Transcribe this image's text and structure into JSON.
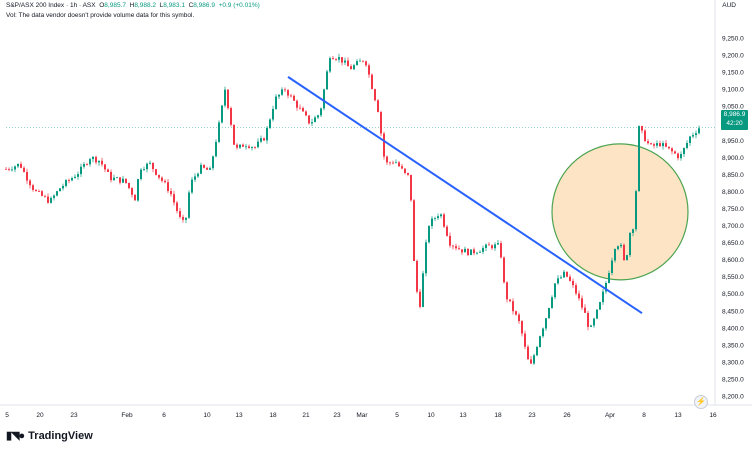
{
  "header": {
    "symbol": "S&P/ASX 200 Index · 1h · ASX",
    "open_label": "O",
    "open": "8,985.7",
    "high_label": "H",
    "high": "8,988.2",
    "low_label": "L",
    "low": "8,983.1",
    "close_label": "C",
    "close": "8,986.9",
    "change": "+0.9 (+0.01%)",
    "volume_note": "Vol: The data vendor doesn't provide volume data for this symbol."
  },
  "currency": "AUD",
  "price_label": {
    "value": "8,986.9",
    "countdown": "42:20"
  },
  "logo_text": "TradingView",
  "colors": {
    "up": "#089981",
    "down": "#f23645",
    "trendline": "#2962ff",
    "circle_fill": "#fde3c2",
    "circle_stroke": "#43a047"
  },
  "chart_data": {
    "type": "candlestick",
    "y_ticks": [
      9250,
      9200,
      9150,
      9100,
      9050,
      9000,
      8950,
      8900,
      8850,
      8800,
      8750,
      8700,
      8650,
      8600,
      8550,
      8500,
      8450,
      8400,
      8350,
      8300,
      8250,
      8200
    ],
    "y_tick_labels": [
      "9,250.0",
      "9,200.0",
      "9,150.0",
      "9,100.0",
      "9,050.0",
      "9,000.0",
      "8,950.0",
      "8,900.0",
      "8,850.0",
      "8,800.0",
      "8,750.0",
      "8,700.0",
      "8,650.0",
      "8,600.0",
      "8,550.0",
      "8,500.0",
      "8,450.0",
      "8,400.0",
      "8,350.0",
      "8,300.0",
      "8,250.0",
      "8,200.0"
    ],
    "ylim": [
      8170,
      9290
    ],
    "x_tick_labels": [
      "5",
      "20",
      "23",
      "Feb",
      "6",
      "10",
      "13",
      "18",
      "21",
      "23",
      "Mar",
      "5",
      "10",
      "13",
      "18",
      "23",
      "26",
      "Apr",
      "8",
      "13",
      "16"
    ],
    "x_tick_index": [
      0,
      33,
      67,
      120,
      157,
      200,
      232,
      266,
      299,
      330,
      355,
      390,
      424,
      456,
      491,
      525,
      560,
      603,
      637,
      671,
      706
    ],
    "xlim": [
      0,
      752
    ],
    "path": [
      [
        0,
        8860
      ],
      [
        20,
        8880
      ],
      [
        25,
        8850
      ],
      [
        35,
        8800
      ],
      [
        50,
        8770
      ],
      [
        60,
        8810
      ],
      [
        80,
        8860
      ],
      [
        90,
        8900
      ],
      [
        100,
        8890
      ],
      [
        110,
        8840
      ],
      [
        125,
        8830
      ],
      [
        135,
        8780
      ],
      [
        140,
        8870
      ],
      [
        150,
        8880
      ],
      [
        160,
        8840
      ],
      [
        170,
        8800
      ],
      [
        180,
        8720
      ],
      [
        185,
        8700
      ],
      [
        190,
        8820
      ],
      [
        200,
        8870
      ],
      [
        210,
        8860
      ],
      [
        220,
        9010
      ],
      [
        225,
        9100
      ],
      [
        230,
        9020
      ],
      [
        235,
        8920
      ],
      [
        245,
        8940
      ],
      [
        255,
        8930
      ],
      [
        265,
        8960
      ],
      [
        275,
        9070
      ],
      [
        285,
        9100
      ],
      [
        300,
        9040
      ],
      [
        310,
        9000
      ],
      [
        320,
        9030
      ],
      [
        330,
        9200
      ],
      [
        340,
        9190
      ],
      [
        350,
        9160
      ],
      [
        360,
        9180
      ],
      [
        365,
        9190
      ],
      [
        370,
        9130
      ],
      [
        378,
        9040
      ],
      [
        385,
        8880
      ],
      [
        395,
        8890
      ],
      [
        405,
        8850
      ],
      [
        410,
        8840
      ],
      [
        415,
        8530
      ],
      [
        420,
        8470
      ],
      [
        428,
        8700
      ],
      [
        440,
        8740
      ],
      [
        450,
        8650
      ],
      [
        460,
        8630
      ],
      [
        470,
        8620
      ],
      [
        480,
        8630
      ],
      [
        490,
        8640
      ],
      [
        500,
        8640
      ],
      [
        505,
        8500
      ],
      [
        520,
        8410
      ],
      [
        525,
        8340
      ],
      [
        530,
        8280
      ],
      [
        540,
        8380
      ],
      [
        545,
        8420
      ],
      [
        555,
        8530
      ],
      [
        565,
        8560
      ],
      [
        575,
        8510
      ],
      [
        585,
        8440
      ],
      [
        590,
        8390
      ],
      [
        600,
        8470
      ],
      [
        605,
        8520
      ],
      [
        615,
        8640
      ],
      [
        620,
        8650
      ],
      [
        625,
        8580
      ],
      [
        630,
        8680
      ],
      [
        635,
        8710
      ],
      [
        638,
        8990
      ],
      [
        650,
        8930
      ],
      [
        660,
        8940
      ],
      [
        675,
        8910
      ],
      [
        680,
        8900
      ],
      [
        690,
        8960
      ],
      [
        700,
        8990
      ]
    ],
    "trendline": [
      [
        288,
        9136
      ],
      [
        642,
        8443
      ]
    ],
    "highlight_circle": {
      "cx_value": 620,
      "cy_value": 8740,
      "r_value": 68
    },
    "current_price": 8986.9
  }
}
